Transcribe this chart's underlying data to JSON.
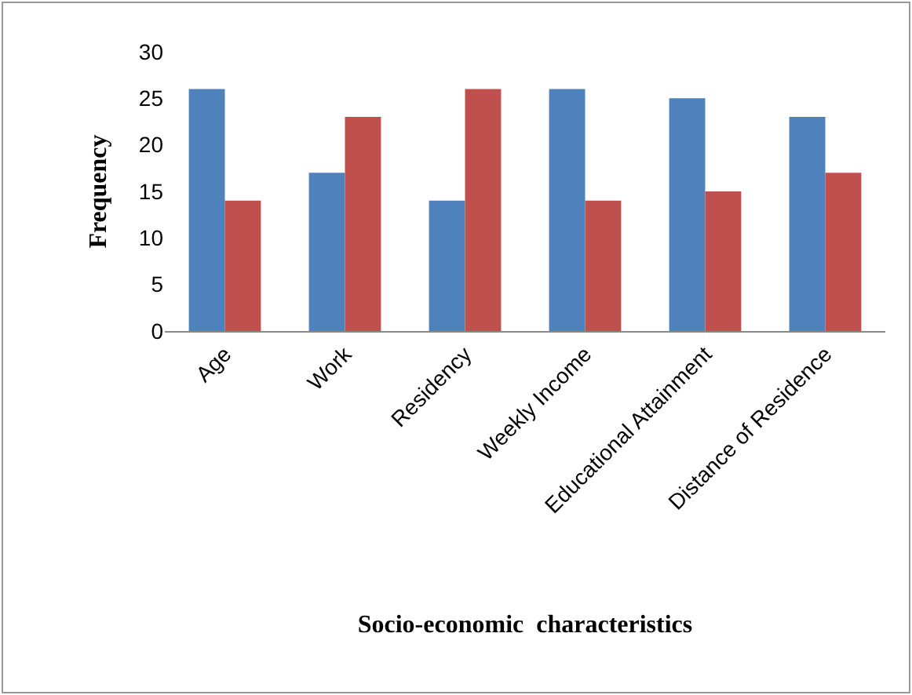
{
  "chart_data": {
    "type": "bar",
    "xlabel": "Socio-economic  characteristics",
    "ylabel": "Frequency",
    "categories": [
      "Age",
      "Work",
      "Residency",
      "Weekly Income",
      "Educational Attainment",
      "Distance of Residence"
    ],
    "series": [
      {
        "color": "#4f81bd",
        "values": [
          26,
          17,
          14,
          26,
          25,
          23
        ]
      },
      {
        "color": "#c0504d",
        "values": [
          14,
          23,
          26,
          14,
          15,
          17
        ]
      }
    ],
    "ylim": [
      0,
      30
    ],
    "yticks": [
      0,
      5,
      10,
      15,
      20,
      25,
      30
    ]
  }
}
